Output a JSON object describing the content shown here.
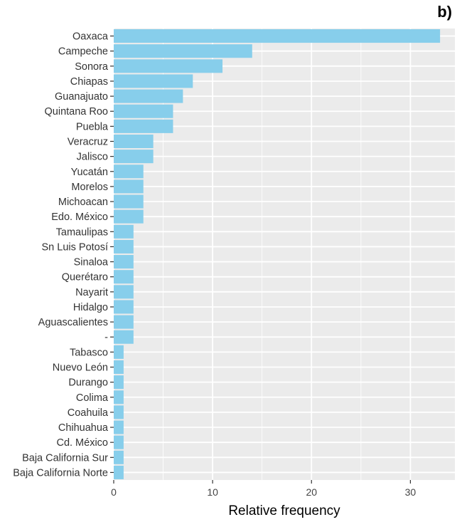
{
  "panel_label": "b)",
  "chart_data": {
    "type": "bar",
    "orientation": "horizontal",
    "xlabel": "Relative frequency",
    "ylabel": "",
    "xlim": [
      0,
      34.5
    ],
    "xticks": [
      0,
      10,
      20,
      30
    ],
    "grid": true,
    "bar_color": "#87CEEB",
    "panel_color": "#EBEBEB",
    "categories": [
      "Oaxaca",
      "Campeche",
      "Sonora",
      "Chiapas",
      "Guanajuato",
      "Quintana Roo",
      "Puebla",
      "Veracruz",
      "Jalisco",
      "Yucatán",
      "Morelos",
      "Michoacan",
      "Edo. México",
      "Tamaulipas",
      "Sn Luis Potosí",
      "Sinaloa",
      "Querétaro",
      "Nayarit",
      "Hidalgo",
      "Aguascalientes",
      "-",
      "Tabasco",
      "Nuevo León",
      "Durango",
      "Colima",
      "Coahuila",
      "Chihuahua",
      "Cd. México",
      "Baja California Sur",
      "Baja California Norte"
    ],
    "values": [
      33,
      14,
      11,
      8,
      7,
      6,
      6,
      4,
      4,
      3,
      3,
      3,
      3,
      2,
      2,
      2,
      2,
      2,
      2,
      2,
      2,
      1,
      1,
      1,
      1,
      1,
      1,
      1,
      1,
      1
    ]
  }
}
